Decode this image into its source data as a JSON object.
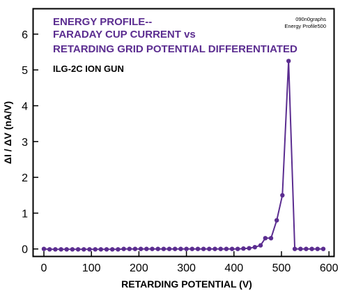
{
  "chart_data": {
    "type": "line",
    "title_lines": [
      "ENERGY PROFILE--",
      "FARADAY CUP CURRENT vs",
      "RETARDING GRID POTENTIAL DIFFERENTIATED"
    ],
    "subtitle": "ILG-2C ION GUN",
    "stamp_lines": [
      "090n0graphs",
      "Energy Profile500"
    ],
    "xlabel": "RETARDING POTENTIAL (V)",
    "ylabel": "ΔI / ΔV  (nA/V)",
    "xlim": [
      -22,
      610
    ],
    "ylim": [
      -0.2,
      6.7
    ],
    "xticks": [
      0,
      100,
      200,
      300,
      400,
      500,
      600
    ],
    "yticks": [
      0,
      1,
      2,
      3,
      4,
      5,
      6
    ],
    "grid": false,
    "series_color": "#5b2d90",
    "title_color": "#5b2d90",
    "series": [
      {
        "x": [
          0,
          12,
          24,
          36,
          48,
          60,
          72,
          84,
          96,
          108,
          120,
          132,
          144,
          156,
          168,
          180,
          192,
          204,
          216,
          228,
          240,
          252,
          264,
          276,
          288,
          300,
          312,
          324,
          336,
          348,
          360,
          372,
          384,
          396,
          408,
          420,
          432,
          444,
          456,
          466,
          478,
          490,
          502,
          515,
          528,
          540,
          552,
          564,
          576,
          588
        ],
        "y": [
          0.0,
          -0.01,
          -0.01,
          -0.01,
          -0.01,
          -0.01,
          -0.01,
          -0.01,
          -0.01,
          -0.01,
          -0.01,
          -0.01,
          -0.01,
          -0.01,
          0.0,
          0.0,
          0.0,
          0.0,
          0.0,
          0.0,
          0.0,
          0.0,
          0.0,
          0.0,
          0.0,
          0.0,
          0.0,
          0.0,
          0.0,
          0.0,
          0.0,
          0.0,
          0.0,
          0.0,
          0.0,
          0.01,
          0.02,
          0.05,
          0.1,
          0.3,
          0.3,
          0.8,
          1.5,
          5.25,
          0.0,
          0.0,
          0.0,
          0.0,
          0.0,
          0.0
        ]
      }
    ]
  }
}
